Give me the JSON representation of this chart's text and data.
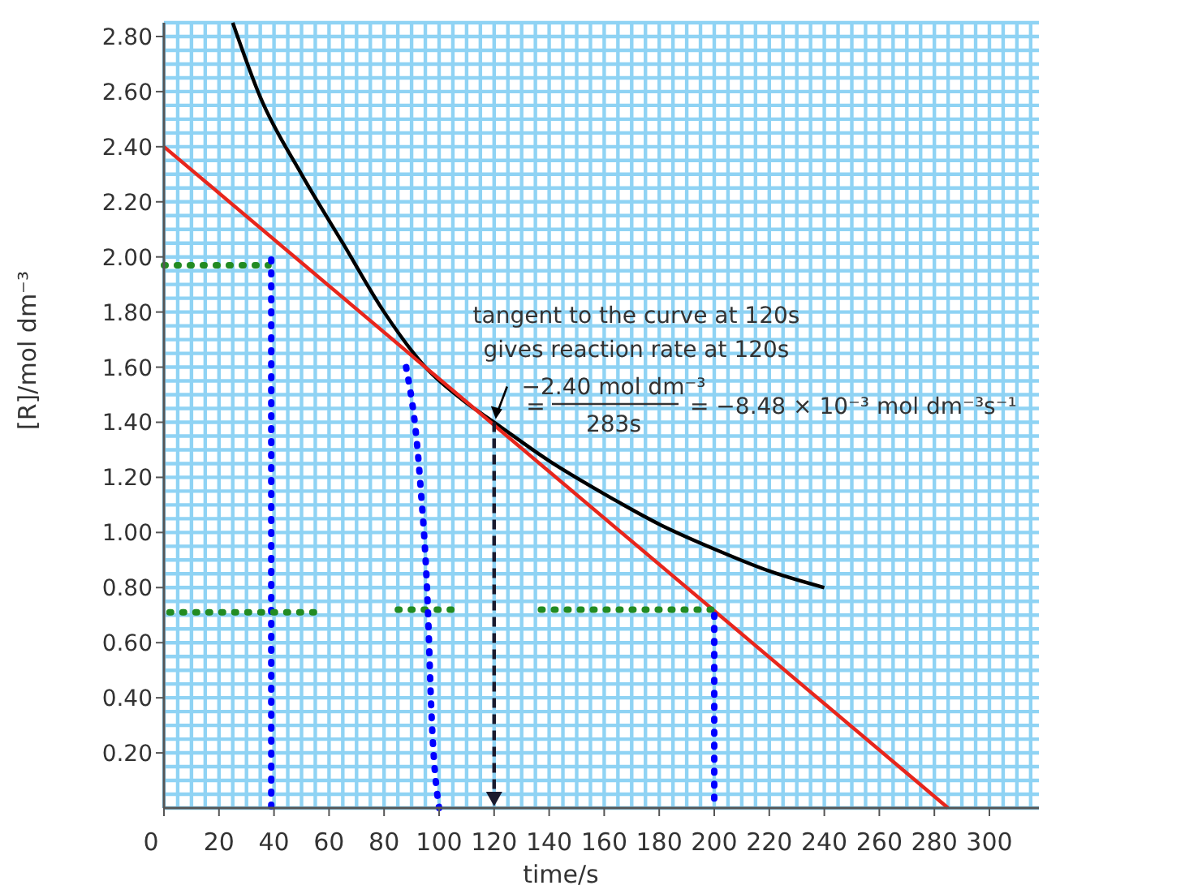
{
  "chart_data": {
    "type": "line",
    "xlabel": "time/s",
    "ylabel": "[R]/mol dm⁻³",
    "xlim": [
      0,
      318
    ],
    "ylim": [
      0,
      2.85
    ],
    "xticks": [
      0,
      20,
      40,
      60,
      80,
      100,
      120,
      140,
      160,
      180,
      200,
      220,
      240,
      260,
      280,
      300
    ],
    "yticks": [
      {
        "value": 0.2,
        "label": "0.20"
      },
      {
        "value": 0.4,
        "label": "0.40"
      },
      {
        "value": 0.6,
        "label": "0.60"
      },
      {
        "value": 0.8,
        "label": "0.80"
      },
      {
        "value": 1.0,
        "label": "1.00"
      },
      {
        "value": 1.2,
        "label": "1.20"
      },
      {
        "value": 1.4,
        "label": "1.40"
      },
      {
        "value": 1.6,
        "label": "1.60"
      },
      {
        "value": 1.8,
        "label": "1.80"
      },
      {
        "value": 2.0,
        "label": "2.00"
      },
      {
        "value": 2.2,
        "label": "2.20"
      },
      {
        "value": 2.4,
        "label": "2.40"
      },
      {
        "value": 2.6,
        "label": "2.60"
      },
      {
        "value": 2.8,
        "label": "2.80"
      }
    ],
    "grid": true,
    "marker": "none",
    "series": [
      {
        "color": "#000000",
        "line_style": "solid",
        "x": [
          25,
          35,
          50,
          65,
          80,
          95,
          110,
          120,
          140,
          160,
          180,
          200,
          220,
          240
        ],
        "values": [
          2.85,
          2.58,
          2.3,
          2.05,
          1.8,
          1.6,
          1.47,
          1.4,
          1.26,
          1.14,
          1.03,
          0.94,
          0.86,
          0.8
        ]
      },
      {
        "color": "#e8261c",
        "line_style": "solid",
        "x": [
          0,
          285
        ],
        "values": [
          2.4,
          0
        ]
      },
      {
        "color": "#228b22",
        "line_style": "dotted",
        "x": [
          0,
          38
        ],
        "values": [
          1.97,
          1.97
        ]
      },
      {
        "color": "#0000ff",
        "line_style": "dotted",
        "x": [
          39,
          39
        ],
        "values": [
          1.99,
          0
        ]
      },
      {
        "color": "#228b22",
        "line_style": "dotted",
        "x": [
          2,
          58
        ],
        "values": [
          0.71,
          0.71
        ]
      },
      {
        "color": "#228b22",
        "line_style": "dotted",
        "x": [
          85,
          107
        ],
        "values": [
          0.72,
          0.72
        ]
      },
      {
        "color": "#228b22",
        "line_style": "dotted",
        "x": [
          137,
          200
        ],
        "values": [
          0.72,
          0.72
        ]
      },
      {
        "color": "#0000ff",
        "line_style": "dotted",
        "x": [
          200,
          200
        ],
        "values": [
          0.7,
          0
        ]
      },
      {
        "color": "#0000ff",
        "line_style": "dotted",
        "x": [
          88,
          93,
          96,
          97,
          100
        ],
        "values": [
          1.6,
          1.2,
          0.7,
          0.4,
          0
        ]
      }
    ],
    "annotations": [
      "tangent to the curve at 120s",
      "gives reaction rate at 120s",
      "=",
      "−2.40 mol dm⁻³",
      "283s",
      "= −8.48 × 10⁻³ mol dm⁻³s⁻¹"
    ]
  }
}
